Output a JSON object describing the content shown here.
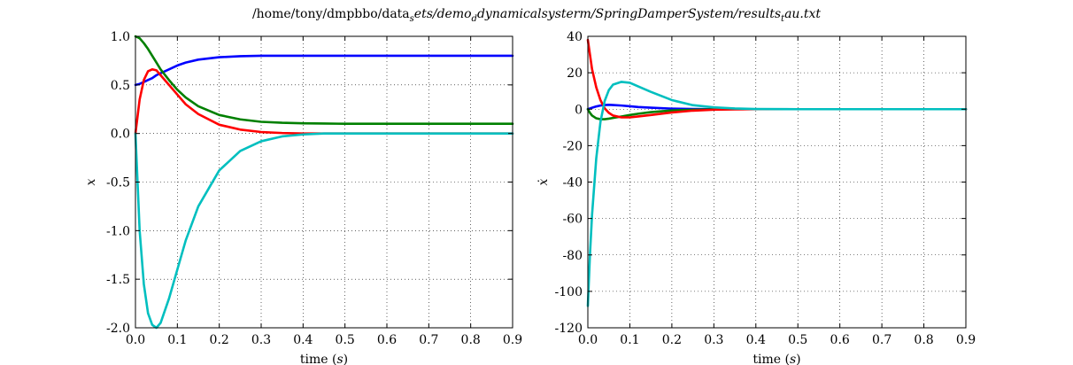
{
  "figure": {
    "title_main": "/home/tony/dmpbbo/data",
    "title_sub1": "ets/demo",
    "title_sub2": "dynamicalsysterm/SpringDamperSystem/results",
    "title_sub3": "au.txt",
    "title_script1": "s",
    "title_script2": "d",
    "title_script3": "t"
  },
  "chart_data": [
    {
      "type": "line",
      "xlabel_prefix": "time (",
      "xlabel_var": "s",
      "xlabel_suffix": ")",
      "ylabel": "x",
      "xlim": [
        0.0,
        0.9
      ],
      "ylim": [
        -2.0,
        1.0
      ],
      "grid": true,
      "xticks": [
        0.0,
        0.1,
        0.2,
        0.3,
        0.4,
        0.5,
        0.6,
        0.7,
        0.8,
        0.9
      ],
      "xtick_labels": [
        "0.0",
        "0.1",
        "0.2",
        "0.3",
        "0.4",
        "0.5",
        "0.6",
        "0.7",
        "0.8",
        "0.9"
      ],
      "yticks": [
        -2.0,
        -1.5,
        -1.0,
        -0.5,
        0.0,
        0.5,
        1.0
      ],
      "ytick_labels": [
        "-2.0",
        "-1.5",
        "-1.0",
        "-0.5",
        "0.0",
        "0.5",
        "1.0"
      ],
      "x": [
        0.0,
        0.01,
        0.02,
        0.03,
        0.04,
        0.05,
        0.06,
        0.08,
        0.1,
        0.12,
        0.15,
        0.2,
        0.25,
        0.3,
        0.35,
        0.4,
        0.45,
        0.5,
        0.6,
        0.7,
        0.8,
        0.9
      ],
      "series": [
        {
          "color": "#0000ff",
          "values": [
            0.5,
            0.51,
            0.53,
            0.55,
            0.57,
            0.6,
            0.62,
            0.66,
            0.7,
            0.73,
            0.76,
            0.785,
            0.795,
            0.8,
            0.8,
            0.8,
            0.8,
            0.8,
            0.8,
            0.8,
            0.8,
            0.8
          ]
        },
        {
          "color": "#008000",
          "values": [
            1.0,
            0.98,
            0.93,
            0.87,
            0.8,
            0.73,
            0.66,
            0.55,
            0.45,
            0.37,
            0.28,
            0.19,
            0.145,
            0.12,
            0.11,
            0.105,
            0.102,
            0.1,
            0.1,
            0.1,
            0.1,
            0.1
          ]
        },
        {
          "color": "#ff0000",
          "values": [
            0.0,
            0.35,
            0.55,
            0.64,
            0.66,
            0.65,
            0.6,
            0.5,
            0.4,
            0.3,
            0.2,
            0.09,
            0.04,
            0.015,
            0.005,
            0.0,
            0.0,
            0.0,
            0.0,
            0.0,
            0.0,
            0.0
          ]
        },
        {
          "color": "#00bfbf",
          "values": [
            0.0,
            -1.0,
            -1.55,
            -1.85,
            -1.97,
            -2.0,
            -1.95,
            -1.7,
            -1.4,
            -1.1,
            -0.75,
            -0.38,
            -0.18,
            -0.08,
            -0.03,
            -0.01,
            0.0,
            0.0,
            0.0,
            0.0,
            0.0,
            0.0
          ]
        }
      ]
    },
    {
      "type": "line",
      "xlabel_prefix": "time (",
      "xlabel_var": "s",
      "xlabel_suffix": ")",
      "ylabel": "ẋ",
      "xlim": [
        0.0,
        0.9
      ],
      "ylim": [
        -120,
        40
      ],
      "grid": true,
      "xticks": [
        0.0,
        0.1,
        0.2,
        0.3,
        0.4,
        0.5,
        0.6,
        0.7,
        0.8,
        0.9
      ],
      "xtick_labels": [
        "0.0",
        "0.1",
        "0.2",
        "0.3",
        "0.4",
        "0.5",
        "0.6",
        "0.7",
        "0.8",
        "0.9"
      ],
      "yticks": [
        -120,
        -100,
        -80,
        -60,
        -40,
        -20,
        0,
        20,
        40
      ],
      "ytick_labels": [
        "-120",
        "-100",
        "-80",
        "-60",
        "-40",
        "-20",
        "0",
        "20",
        "40"
      ],
      "x": [
        0.0,
        0.005,
        0.01,
        0.02,
        0.03,
        0.04,
        0.05,
        0.06,
        0.08,
        0.1,
        0.12,
        0.15,
        0.2,
        0.25,
        0.3,
        0.35,
        0.4,
        0.5,
        0.6,
        0.7,
        0.8,
        0.9
      ],
      "series": [
        {
          "color": "#0000ff",
          "values": [
            0.0,
            0.4,
            0.8,
            1.5,
            2.0,
            2.3,
            2.4,
            2.3,
            2.0,
            1.6,
            1.2,
            0.8,
            0.3,
            0.1,
            0.0,
            0.0,
            0.0,
            0.0,
            0.0,
            0.0,
            0.0,
            0.0
          ]
        },
        {
          "color": "#008000",
          "values": [
            0.0,
            -2.0,
            -3.5,
            -5.0,
            -5.5,
            -5.5,
            -5.2,
            -4.8,
            -4.0,
            -3.2,
            -2.5,
            -1.6,
            -0.7,
            -0.3,
            -0.1,
            0.0,
            0.0,
            0.0,
            0.0,
            0.0,
            0.0,
            0.0
          ]
        },
        {
          "color": "#ff0000",
          "values": [
            38.0,
            30.0,
            22.0,
            12.0,
            5.0,
            0.5,
            -2.0,
            -3.5,
            -4.5,
            -4.5,
            -4.0,
            -3.2,
            -1.8,
            -0.8,
            -0.3,
            -0.1,
            0.0,
            0.0,
            0.0,
            0.0,
            0.0,
            0.0
          ]
        },
        {
          "color": "#00bfbf",
          "values": [
            -108.0,
            -80.0,
            -58.0,
            -27.0,
            -7.0,
            4.5,
            10.5,
            13.5,
            15.0,
            14.5,
            12.5,
            9.5,
            5.0,
            2.2,
            1.0,
            0.4,
            0.1,
            0.0,
            0.0,
            0.0,
            0.0,
            0.0
          ]
        }
      ]
    }
  ]
}
